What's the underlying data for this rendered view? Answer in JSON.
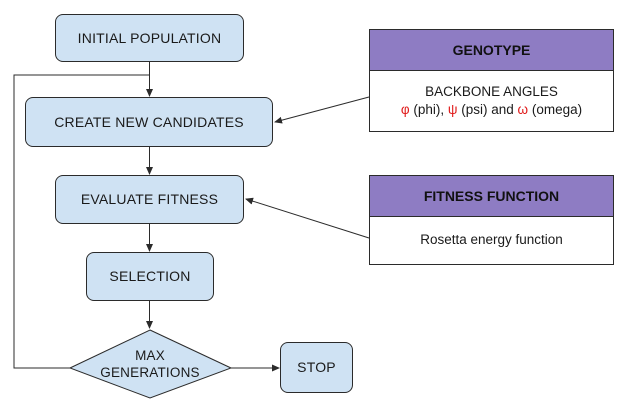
{
  "flow": {
    "initial_population": "INITIAL POPULATION",
    "create_new_candidates": "CREATE NEW CANDIDATES",
    "evaluate_fitness": "EVALUATE FITNESS",
    "selection": "SELECTION",
    "max_generations_line1": "MAX",
    "max_generations_line2": "GENERATIONS",
    "stop": "STOP"
  },
  "genotype": {
    "header": "GENOTYPE",
    "line1": "BACKBONE ANGLES",
    "phi_symbol": "φ",
    "phi_text": " (phi), ",
    "psi_symbol": "ψ",
    "psi_text": " (psi) and ",
    "omega_symbol": "ω",
    "omega_text": " (omega)"
  },
  "fitness_function": {
    "header": "FITNESS FUNCTION",
    "body": "Rosetta energy function"
  },
  "colors": {
    "process_fill": "#cfe2f3",
    "header_fill": "#8e7cc3",
    "greek_symbol": "#e01b1b",
    "stroke": "#2b2b2b"
  }
}
